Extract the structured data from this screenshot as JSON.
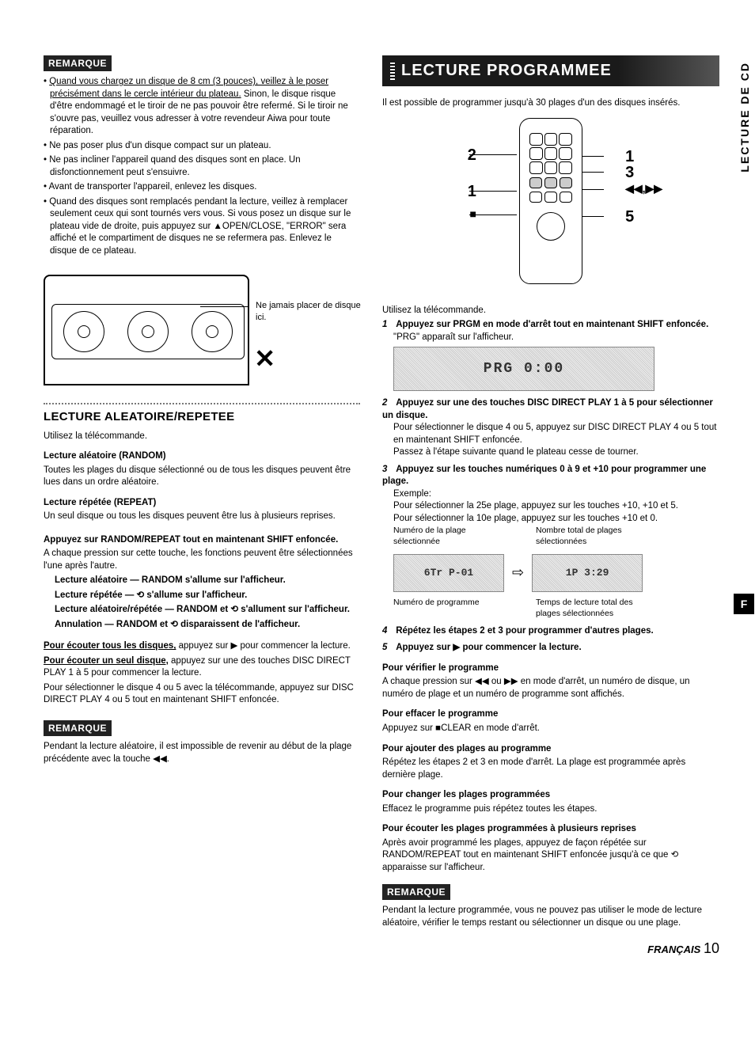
{
  "colors": {
    "text": "#000000",
    "bg": "#ffffff",
    "badge_bg": "#222222",
    "badge_fg": "#ffffff",
    "panel_bg_a": "#cccccc",
    "panel_bg_b": "#eeeeee",
    "border_gray": "#888888",
    "title_grad_a": "#1a1a1a",
    "title_grad_b": "#555555"
  },
  "typography": {
    "body_pt": 11.5,
    "h2_pt": 15,
    "title_pt": 20,
    "line_height": 1.35
  },
  "left": {
    "remark1_label": "REMARQUE",
    "bullets": [
      "Quand vous chargez un disque de 8 cm (3 pouces), veillez à le poser précisément dans le cercle intérieur du plateau. Sinon, le disque risque d'être endommagé et le tiroir de ne pas pouvoir être refermé. Si le tiroir ne s'ouvre pas, veuillez vous adresser à votre revendeur Aiwa pour toute réparation.",
      "Ne pas poser plus d'un disque compact sur un plateau.",
      "Ne pas incliner l'appareil quand des disques sont en place. Un disfonctionnement peut s'ensuivre.",
      "Avant de transporter l'appareil, enlevez les disques.",
      "Quand des disques sont remplacés pendant la lecture, veillez à remplacer seulement ceux qui sont tournés vers vous. Si vous posez un disque sur le plateau vide de droite, puis appuyez sur ▲OPEN/CLOSE, \"ERROR\" sera affiché et le compartiment de disques ne se refermera pas. Enlevez le disque de ce plateau."
    ],
    "fig_caption": "Ne jamais placer de disque ici.",
    "h2": "LECTURE ALEATOIRE/REPETEE",
    "intro": "Utilisez la télécommande.",
    "random_title": "Lecture aléatoire (RANDOM)",
    "random_body": "Toutes les plages du disque sélectionné ou de tous les disques peuvent être lues dans un ordre aléatoire.",
    "repeat_title": "Lecture répétée (REPEAT)",
    "repeat_body": "Un seul disque ou tous les disques peuvent être lus à plusieurs reprises.",
    "press_title": "Appuyez sur RANDOM/REPEAT tout en maintenant SHIFT enfoncée.",
    "press_intro": "A chaque pression sur cette touche, les fonctions peuvent être sélectionnées l'une après l'autre.",
    "modes": {
      "random": "Lecture aléatoire — RANDOM s'allume sur l'afficheur.",
      "repeat": "Lecture répétée — ⟲ s'allume sur l'afficheur.",
      "both": "Lecture aléatoire/répétée — RANDOM et ⟲ s'allument sur l'afficheur.",
      "cancel": "Annulation — RANDOM et ⟲ disparaissent de l'afficheur."
    },
    "all_discs_lead": "Pour écouter tous les disques,",
    "all_discs_rest": " appuyez sur ▶ pour commencer la lecture.",
    "one_disc_lead": "Pour écouter un seul disque,",
    "one_disc_rest": " appuyez sur une des touches DISC DIRECT PLAY 1 à 5 pour commencer la lecture.",
    "one_disc_note": "Pour sélectionner le disque 4 ou 5 avec la télécommande, appuyez sur DISC DIRECT PLAY 4 ou 5 tout en maintenant SHIFT enfoncée.",
    "remark2_label": "REMARQUE",
    "remark2_body": "Pendant la lecture aléatoire, il est impossible de revenir au début de la plage précédente avec la touche ◀◀."
  },
  "right": {
    "title": "LECTURE PROGRAMMEE",
    "vtab": "LECTURE DE CD",
    "intro": "Il est possible de programmer jusqu'à 30 plages d'un des disques insérés.",
    "remote_labels": {
      "l1": "2",
      "r1": "1",
      "r2": "3",
      "l2": "1",
      "r3": "◀◀,▶▶",
      "l3": "■",
      "r4": "5"
    },
    "use_remote": "Utilisez la télécommande.",
    "steps": {
      "s1_title": "Appuyez sur PRGM en mode d'arrêt tout en maintenant SHIFT enfoncée.",
      "s1_body": "\"PRG\" apparaît sur l'afficheur.",
      "s1_display": "PRG  0:00",
      "s2_title": "Appuyez sur une des touches DISC DIRECT PLAY 1 à 5 pour sélectionner un disque.",
      "s2_body1": "Pour sélectionner le disque 4 ou 5, appuyez sur DISC DIRECT PLAY 4 ou 5 tout en maintenant SHIFT enfoncée.",
      "s2_body2": "Passez à l'étape suivante quand le plateau cesse de tourner.",
      "s3_title": "Appuyez sur les touches numériques 0 à 9 et +10 pour programmer une plage.",
      "s3_ex": "Exemple:",
      "s3_ex1": "Pour sélectionner la 25e plage, appuyez sur les touches +10, +10 et 5.",
      "s3_ex2": "Pour sélectionner la 10e plage, appuyez sur les touches +10 et 0.",
      "s3_cap_tl": "Numéro de la plage sélectionnée",
      "s3_cap_tr": "Nombre total de plages sélectionnées",
      "s3_disp_a": "6Tr P-01",
      "s3_disp_b": "1P  3:29",
      "s3_cap_bl": "Numéro de programme",
      "s3_cap_br": "Temps de lecture total des plages sélectionnées",
      "s4_title": "Répétez les étapes 2 et 3 pour programmer d'autres plages.",
      "s5_title": "Appuyez sur ▶ pour commencer la lecture."
    },
    "post": {
      "verify_t": "Pour vérifier le programme",
      "verify_b": "A chaque pression sur ◀◀ ou ▶▶ en mode d'arrêt, un numéro de disque, un numéro de plage et un numéro de programme sont affichés.",
      "clear_t": "Pour effacer le programme",
      "clear_b": "Appuyez sur ■CLEAR en mode d'arrêt.",
      "add_t": "Pour ajouter des plages au programme",
      "add_b": "Répétez les étapes 2 et 3 en mode d'arrêt. La plage est programmée après dernière plage.",
      "change_t": "Pour changer les plages programmées",
      "change_b": "Effacez le programme puis répétez toutes les étapes.",
      "repeat_t": "Pour écouter les plages programmées à plusieurs reprises",
      "repeat_b": "Après avoir programmé les plages, appuyez de façon répétée sur RANDOM/REPEAT tout en maintenant SHIFT enfoncée jusqu'à ce que ⟲ apparaisse sur l'afficheur."
    },
    "remark_label": "REMARQUE",
    "remark_body": "Pendant la lecture programmée, vous ne pouvez pas utiliser le mode de lecture aléatoire, vérifier le temps restant ou sélectionner un disque ou une plage.",
    "footer_lang": "FRANÇAIS",
    "footer_page": "10",
    "tab_letter": "F"
  }
}
